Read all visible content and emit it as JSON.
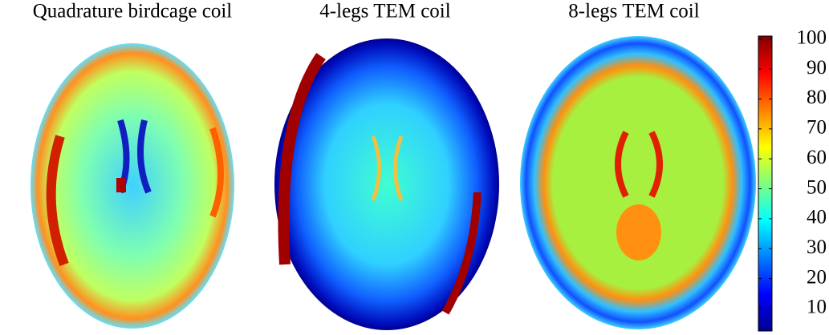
{
  "chart_data": {
    "type": "heatmap",
    "panels": [
      "Quadrature birdcage coil",
      "4-legs TEM coil",
      "8-legs TEM coil"
    ],
    "colormap": "jet",
    "clim": [
      2.5,
      101
    ],
    "cticks": [
      10,
      20,
      30,
      40,
      50,
      60,
      70,
      80,
      90,
      100
    ]
  }
}
